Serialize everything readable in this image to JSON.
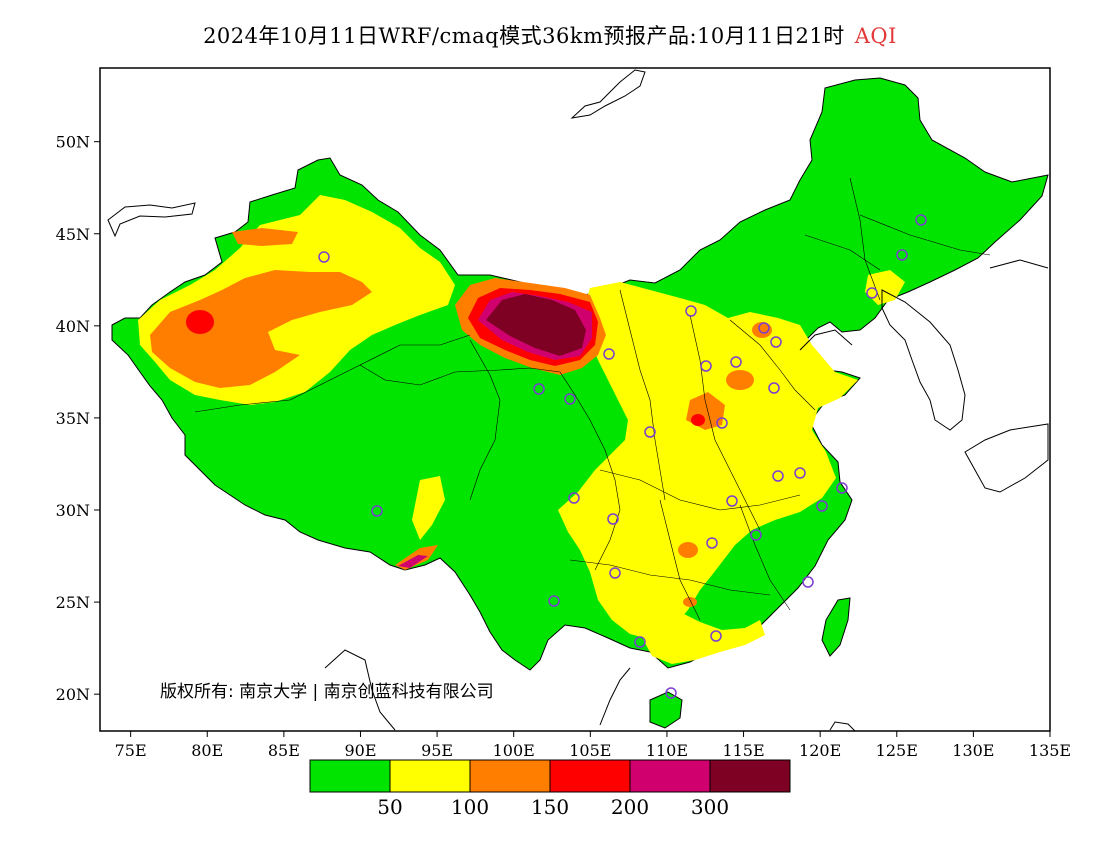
{
  "title": {
    "text": "2024年10月11日WRF/cmaq模式36km预报产品:10月11日21时",
    "highlight": "AQI",
    "highlight_color": "#e23a3a"
  },
  "map": {
    "lon_range": [
      73,
      135
    ],
    "lat_range": [
      18,
      54
    ],
    "lon_ticks": [
      "75E",
      "80E",
      "85E",
      "90E",
      "95E",
      "100E",
      "105E",
      "110E",
      "115E",
      "120E",
      "125E",
      "130E",
      "135E"
    ],
    "lat_ticks": [
      "20N",
      "25N",
      "30N",
      "35N",
      "40N",
      "45N",
      "50N"
    ],
    "copyright": "版权所有: 南京大学 | 南京创蓝科技有限公司",
    "station_marker_color": "#7a3fd0"
  },
  "legend": {
    "colors": [
      "#00e400",
      "#ffff00",
      "#ff7e00",
      "#ff0000",
      "#d0006f",
      "#7e0023"
    ],
    "labels": [
      "50",
      "100",
      "150",
      "200",
      "300"
    ]
  }
}
